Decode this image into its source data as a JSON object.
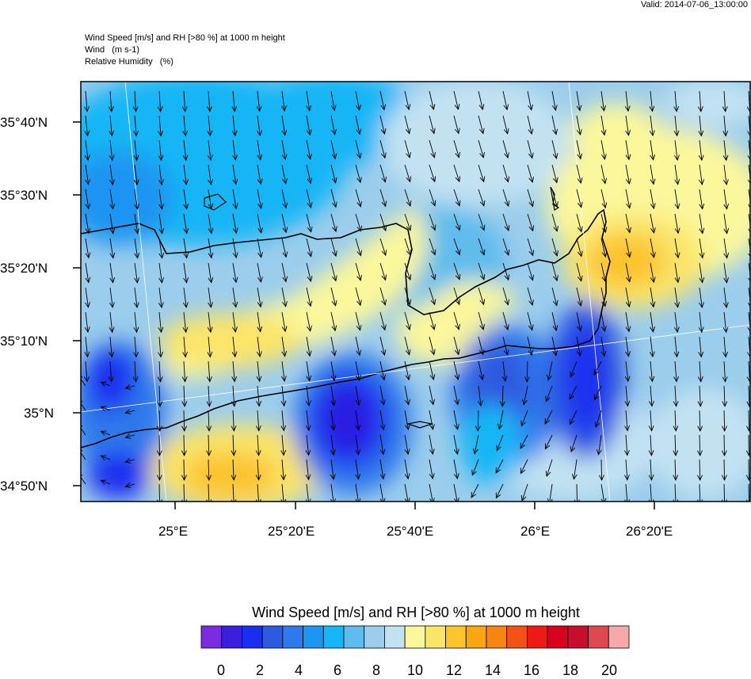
{
  "valid_time": "Valid: 2014-07-06_13:00:00",
  "header": {
    "line1": "Wind Speed [m/s] and RH [>80 %] at 1000 m height",
    "line2": "Wind   (m s-1)",
    "line3": "Relative Humidity   (%)"
  },
  "lat_labels": [
    "35°40'N",
    "35°30'N",
    "35°20'N",
    "35°10'N",
    "35°N",
    "34°50'N"
  ],
  "lon_labels": [
    "25°E",
    "25°20'E",
    "25°40'E",
    "26°E",
    "26°20'E"
  ],
  "colorbar": {
    "title": "Wind Speed [m/s] and RH [>80 %] at 1000 m height",
    "tick_labels": [
      "0",
      "2",
      "4",
      "6",
      "8",
      "10",
      "12",
      "14",
      "16",
      "18",
      "20"
    ],
    "colors": [
      "#7b2be0",
      "#3a1ee0",
      "#1a2ef0",
      "#2e5ae0",
      "#2f79ec",
      "#1f95f2",
      "#14b6f6",
      "#5ebcec",
      "#9bcdec",
      "#c2e2f2",
      "#fbf79b",
      "#fbe569",
      "#fbc42d",
      "#f8a612",
      "#f68512",
      "#f25314",
      "#ee1b14",
      "#d8001c",
      "#c80e2c",
      "#de484e",
      "#f8a8a8"
    ],
    "min": 0,
    "max": 21,
    "step": 1
  },
  "map": {
    "fill_levels": [
      "#2a1ee0",
      "#2e5ae0",
      "#14b6f6",
      "#5ebcec",
      "#9bcdec",
      "#c2e2f2",
      "#fbf79b",
      "#fbe569",
      "#fbc42d"
    ],
    "wind_direction": "north-west to south-east"
  }
}
